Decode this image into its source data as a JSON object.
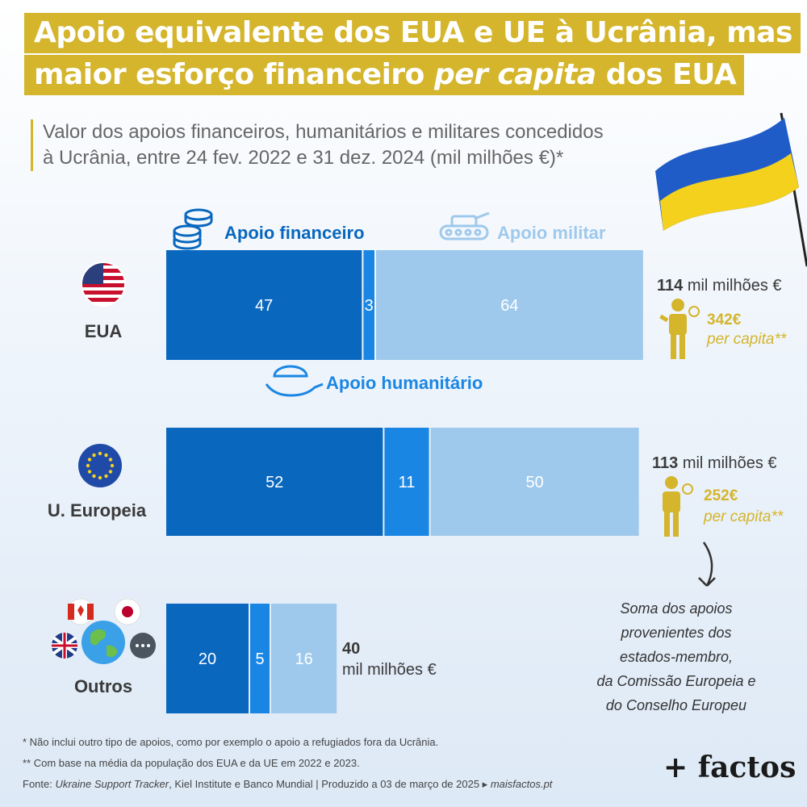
{
  "title": {
    "line1": "Apoio equivalente dos EUA e UE à Ucrânia, mas",
    "line2_pre": "maior esforço financeiro ",
    "line2_em": "per capita",
    "line2_post": " dos EUA"
  },
  "subtitle": {
    "line1": "Valor dos apoios financeiros, humanitários e militares concedidos",
    "line2": "à Ucrânia, entre 24 fev. 2022 e 31 dez. 2024 (mil milhões €)*"
  },
  "legend": {
    "financial": "Apoio financeiro",
    "military": "Apoio militar",
    "humanitarian": "Apoio humanitário"
  },
  "colors": {
    "financial": "#0967be",
    "humanitarian": "#1a86e4",
    "military": "#9ec9ec",
    "gold": "#d4b52c",
    "label_dark": "#3a3a3a"
  },
  "chart_data": {
    "type": "bar",
    "orientation": "horizontal",
    "stacked": true,
    "categories": [
      "EUA",
      "U. Europeia",
      "Outros"
    ],
    "series": [
      {
        "name": "Apoio financeiro",
        "values": [
          47,
          52,
          20
        ]
      },
      {
        "name": "Apoio humanitário",
        "values": [
          3,
          11,
          5
        ]
      },
      {
        "name": "Apoio militar",
        "values": [
          64,
          50,
          16
        ]
      }
    ],
    "totals": [
      {
        "value": "114",
        "unit": "mil milhões €"
      },
      {
        "value": "113",
        "unit": "mil milhões €"
      },
      {
        "value": "40",
        "unit": "mil milhões €"
      }
    ],
    "per_capita": [
      {
        "value": "342€",
        "label": "per capita**"
      },
      {
        "value": "252€",
        "label": "per capita**"
      }
    ]
  },
  "eu_note": [
    "Soma dos apoios",
    "provenientes dos",
    "estados-membro,",
    "da Comissão Europeia e",
    "do Conselho Europeu"
  ],
  "footnotes": {
    "note1": "* Não inclui outro tipo de apoios, como por exemplo o apoio a refugiados fora da Ucrânia.",
    "note2": "** Com base na média da população dos EUA e da UE em 2022 e 2023.",
    "source_pre": "Fonte: ",
    "source_em": "Ukraine Support Tracker",
    "source_post": ", Kiel Institute e Banco Mundial  |  Produzido a 03 de março de 2025 ▸ ",
    "site": "maisfactos.pt"
  },
  "logo": "+ factos"
}
